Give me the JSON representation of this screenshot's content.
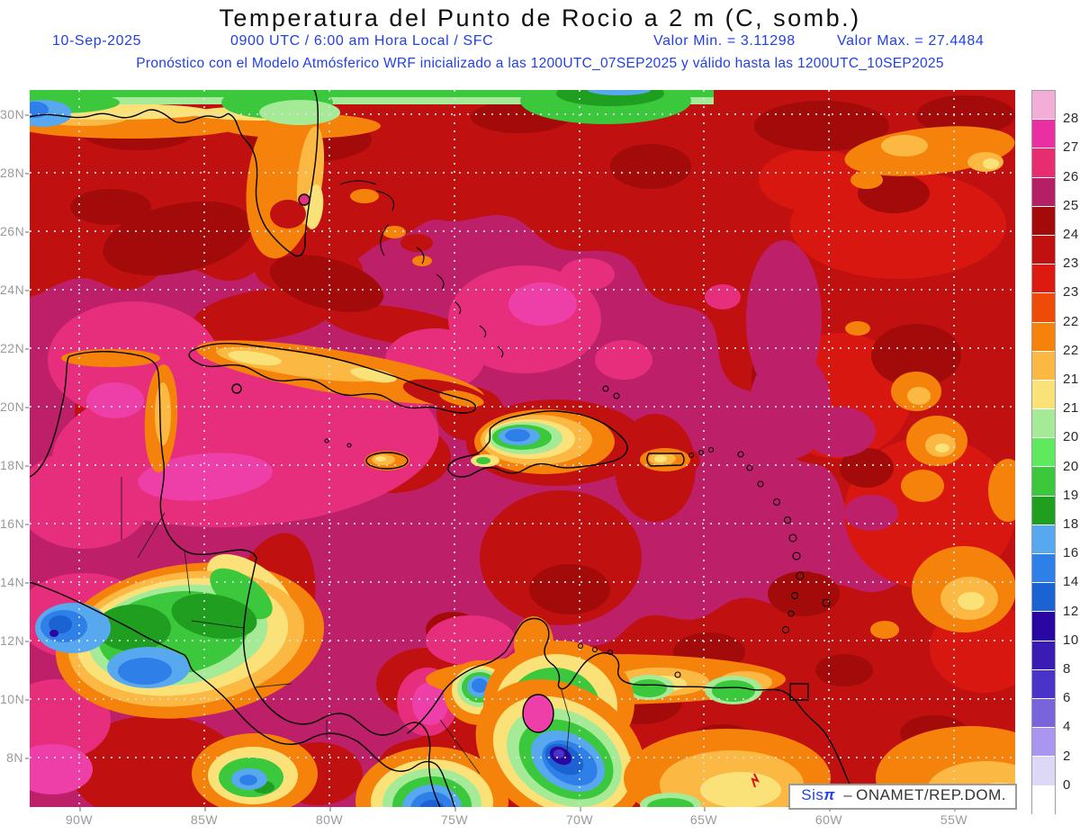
{
  "title": "Temperatura del Punto de Rocio a 2 m (C, somb.)",
  "header": {
    "date": "10-Sep-2025",
    "time_info": "0900 UTC / 6:00 am Hora Local / SFC",
    "min_label": "Valor Min. = 3.11298",
    "max_label": "Valor Max. = 27.4484",
    "forecast_line": "Pronóstico con el Modelo Atmósferico WRF inicializado a las 1200UTC_07SEP2025 y válido hasta las  1200UTC_10SEP2025"
  },
  "axes": {
    "lat_labels": [
      "30N",
      "28N",
      "26N",
      "24N",
      "22N",
      "20N",
      "18N",
      "16N",
      "14N",
      "12N",
      "10N",
      "8N"
    ],
    "lon_labels": [
      "90W",
      "85W",
      "80W",
      "75W",
      "70W",
      "65W",
      "60W",
      "55W"
    ]
  },
  "colorbar": {
    "labels": [
      "28",
      "27",
      "26",
      "25",
      "24.5",
      "23.5",
      "23",
      "22.5",
      "22",
      "21.5",
      "21",
      "20.5",
      "20",
      "19",
      "18",
      "16",
      "14",
      "12",
      "10",
      "8",
      "6",
      "4",
      "2",
      "0"
    ],
    "colors": [
      "#f2aed6",
      "#ea2fa2",
      "#e82c70",
      "#b51f66",
      "#a30b0b",
      "#c01010",
      "#dd1a10",
      "#ee4a08",
      "#f5820a",
      "#fbb843",
      "#fae178",
      "#a5ea96",
      "#5ee95e",
      "#3cc83c",
      "#1f9e1f",
      "#58a8f0",
      "#2f7fe8",
      "#1b62d2",
      "#2a07a2",
      "#3a1cb4",
      "#4a33c8",
      "#7a64dc",
      "#aa96f0",
      "#dcd8f6",
      "#ffffff"
    ]
  },
  "watermark": {
    "brand": "Sis",
    "pi": "π",
    "dash": "–",
    "org": "ONAMET/REP.DOM."
  },
  "chart_data": {
    "type": "filled-contour-map",
    "variable": "Temperatura del Punto de Rocio a 2 m",
    "units": "C",
    "shading_note": "somb.",
    "valid_date": "10-Sep-2025",
    "valid_time": "0900 UTC / 6:00 am Hora Local / SFC",
    "value_min": 3.11298,
    "value_max": 27.4484,
    "model": "WRF",
    "initialized": "1200UTC_07SEP2025",
    "valid_until": "1200UTC_10SEP2025",
    "lat_ticks": [
      "30N",
      "28N",
      "26N",
      "24N",
      "22N",
      "20N",
      "18N",
      "16N",
      "14N",
      "12N",
      "10N",
      "8N"
    ],
    "lon_ticks": [
      "90W",
      "85W",
      "80W",
      "75W",
      "70W",
      "65W",
      "60W",
      "55W"
    ],
    "contour_levels_c": [
      28,
      27,
      26,
      25,
      24.5,
      23.5,
      23,
      22.5,
      22,
      21.5,
      21,
      20.5,
      20,
      19,
      18,
      16,
      14,
      12,
      10,
      8,
      6,
      4,
      2,
      0
    ],
    "palette_top_to_bottom": [
      "#f2aed6",
      "#ea2fa2",
      "#e82c70",
      "#b51f66",
      "#a30b0b",
      "#c01010",
      "#dd1a10",
      "#ee4a08",
      "#f5820a",
      "#fbb843",
      "#fae178",
      "#a5ea96",
      "#5ee95e",
      "#3cc83c",
      "#1f9e1f",
      "#58a8f0",
      "#2f7fe8",
      "#1b62d2",
      "#2a07a2",
      "#3a1cb4",
      "#4a33c8",
      "#7a64dc",
      "#aa96f0",
      "#dcd8f6",
      "#ffffff"
    ],
    "legend_position": "right",
    "grid": "dotted",
    "region": "Caribbean / Gulf of Mexico / Central America / Northern South America",
    "source": "ONAMET/REP.DOM.",
    "system": "Sisπ"
  }
}
